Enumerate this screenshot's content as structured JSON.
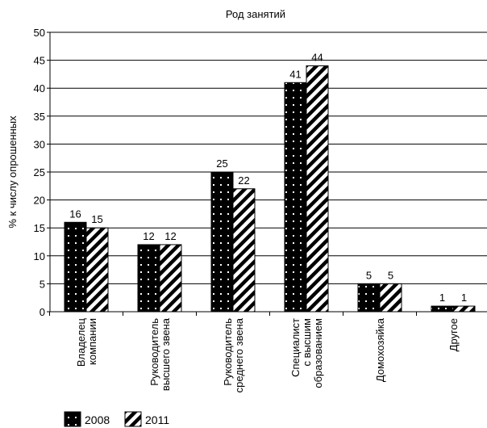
{
  "chart_data": {
    "type": "bar",
    "title": "Род занятий",
    "xlabel": "",
    "ylabel": "% к числу опрошенных",
    "ylim": [
      0,
      50
    ],
    "yticks": [
      0,
      5,
      10,
      15,
      20,
      25,
      30,
      35,
      40,
      45,
      50
    ],
    "grid": true,
    "legend_position": "bottom-left",
    "categories": [
      [
        "Владелец",
        "компании"
      ],
      [
        "Руководитель",
        "высшего звена"
      ],
      [
        "Руководитель",
        "среднего звена"
      ],
      [
        "Специалист",
        "с высшим",
        "образованием"
      ],
      [
        "Домохозяйка"
      ],
      [
        "Другое"
      ]
    ],
    "series": [
      {
        "name": "2008",
        "values": [
          16,
          12,
          25,
          41,
          5,
          1
        ],
        "pattern": "black-dotted"
      },
      {
        "name": "2011",
        "values": [
          15,
          12,
          22,
          44,
          5,
          1
        ],
        "pattern": "diagonal-stripes"
      }
    ],
    "colors": {
      "bar_fill": "#000000",
      "grid": "#000000",
      "background": "#ffffff"
    }
  }
}
